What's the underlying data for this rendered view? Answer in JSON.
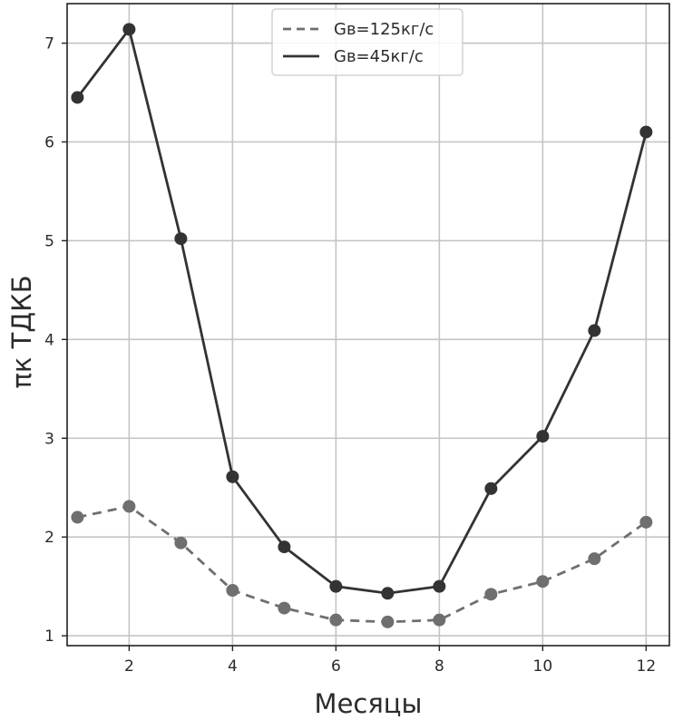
{
  "chart_data": {
    "type": "line",
    "title": "",
    "xlabel": "Месяцы",
    "ylabel": "πк ТДКБ",
    "x": [
      1,
      2,
      3,
      4,
      5,
      6,
      7,
      8,
      9,
      10,
      11,
      12
    ],
    "xlim": [
      0.8,
      12.45
    ],
    "ylim": [
      0.9,
      7.4
    ],
    "xticks": [
      2,
      4,
      6,
      8,
      10,
      12
    ],
    "yticks": [
      1,
      2,
      3,
      4,
      5,
      6,
      7
    ],
    "grid": true,
    "legend_position": "top-center",
    "series": [
      {
        "name": "Gв=125кг/с",
        "style": "dashed",
        "color": "#6f6f6f",
        "values": [
          2.2,
          2.31,
          1.94,
          1.46,
          1.28,
          1.16,
          1.14,
          1.16,
          1.42,
          1.55,
          1.78,
          2.15
        ]
      },
      {
        "name": "Gв=45кг/с",
        "style": "solid",
        "color": "#333333",
        "values": [
          6.45,
          7.14,
          5.02,
          2.61,
          1.9,
          1.5,
          1.43,
          1.5,
          2.49,
          3.02,
          4.09,
          6.1
        ]
      }
    ]
  }
}
